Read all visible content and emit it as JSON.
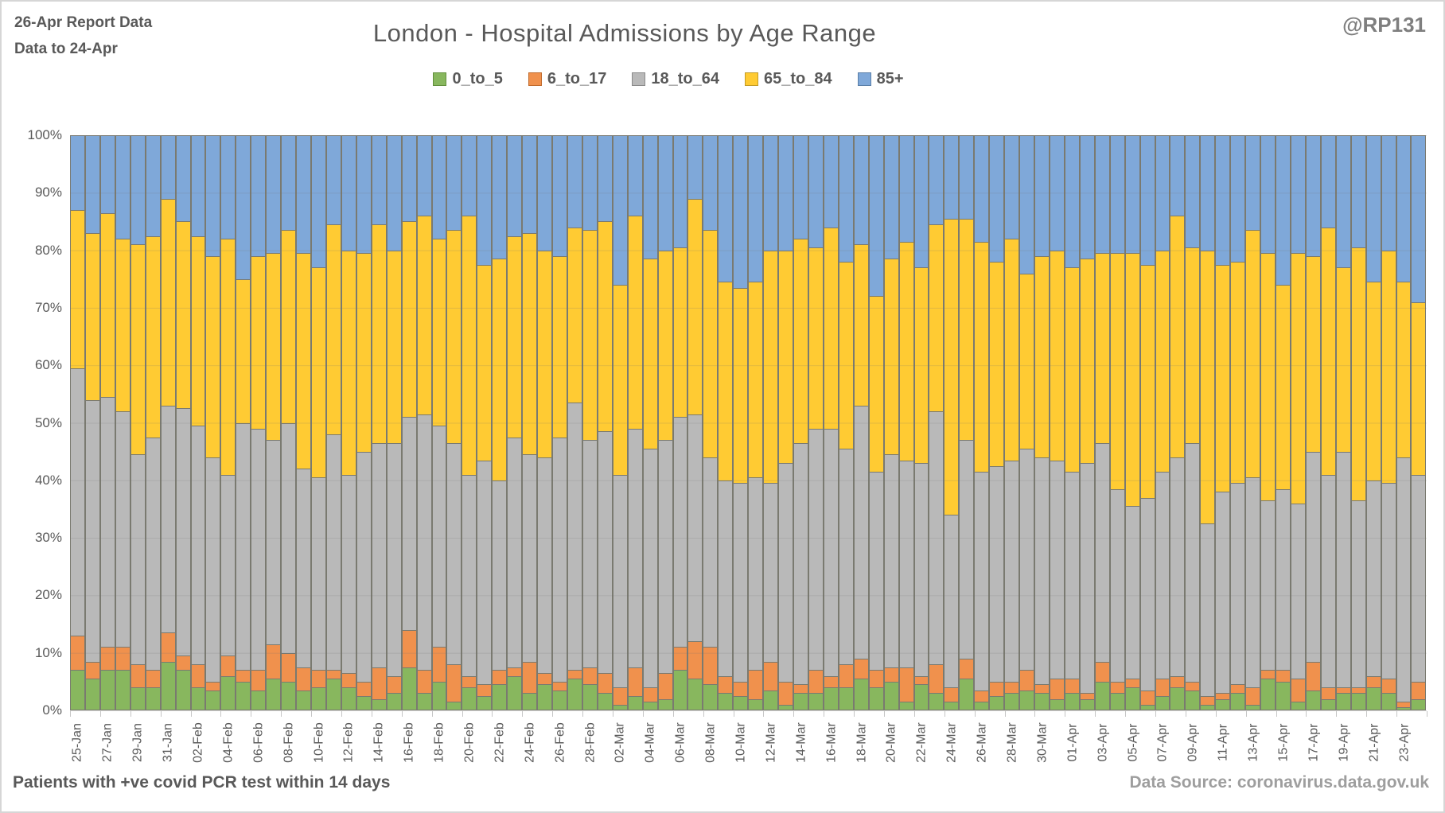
{
  "header": {
    "report_line1": "26-Apr Report Data",
    "report_line2": "Data to 24-Apr",
    "handle": "@RP131"
  },
  "footer": {
    "left": "Patients with  +ve covid PCR test within 14 days",
    "right": "Data Source: coronavirus.data.gov.uk"
  },
  "chart_data": {
    "type": "bar",
    "stacked": true,
    "percent_stacked": true,
    "title": "London - Hospital Admissions by Age Range",
    "ylim": [
      0,
      100
    ],
    "grid": true,
    "legend_position": "top",
    "y_ticks": [
      "0%",
      "10%",
      "20%",
      "30%",
      "40%",
      "50%",
      "60%",
      "70%",
      "80%",
      "90%",
      "100%"
    ],
    "x_tick_label_every": 2,
    "series": [
      {
        "name": "0_to_5",
        "color": "#88b75e",
        "swatch_border": "#628f3c"
      },
      {
        "name": "6_to_17",
        "color": "#f0914d",
        "swatch_border": "#c06a2c"
      },
      {
        "name": "18_to_64",
        "color": "#b9b9b9",
        "swatch_border": "#8a8a8a"
      },
      {
        "name": "65_to_84",
        "color": "#ffcb33",
        "swatch_border": "#c29b27"
      },
      {
        "name": "85+",
        "color": "#7fa8d9",
        "swatch_border": "#5a7fa8"
      }
    ],
    "categories": [
      "25-Jan",
      "26-Jan",
      "27-Jan",
      "28-Jan",
      "29-Jan",
      "30-Jan",
      "31-Jan",
      "01-Feb",
      "02-Feb",
      "03-Feb",
      "04-Feb",
      "05-Feb",
      "06-Feb",
      "07-Feb",
      "08-Feb",
      "09-Feb",
      "10-Feb",
      "11-Feb",
      "12-Feb",
      "13-Feb",
      "14-Feb",
      "15-Feb",
      "16-Feb",
      "17-Feb",
      "18-Feb",
      "19-Feb",
      "20-Feb",
      "21-Feb",
      "22-Feb",
      "23-Feb",
      "24-Feb",
      "25-Feb",
      "26-Feb",
      "27-Feb",
      "28-Feb",
      "01-Mar",
      "02-Mar",
      "03-Mar",
      "04-Mar",
      "05-Mar",
      "06-Mar",
      "07-Mar",
      "08-Mar",
      "09-Mar",
      "10-Mar",
      "11-Mar",
      "12-Mar",
      "13-Mar",
      "14-Mar",
      "15-Mar",
      "16-Mar",
      "17-Mar",
      "18-Mar",
      "19-Mar",
      "20-Mar",
      "21-Mar",
      "22-Mar",
      "23-Mar",
      "24-Mar",
      "25-Mar",
      "26-Mar",
      "27-Mar",
      "28-Mar",
      "29-Mar",
      "30-Mar",
      "31-Mar",
      "01-Apr",
      "02-Apr",
      "03-Apr",
      "04-Apr",
      "05-Apr",
      "06-Apr",
      "07-Apr",
      "08-Apr",
      "09-Apr",
      "10-Apr",
      "11-Apr",
      "12-Apr",
      "13-Apr",
      "14-Apr",
      "15-Apr",
      "16-Apr",
      "17-Apr",
      "18-Apr",
      "19-Apr",
      "20-Apr",
      "21-Apr",
      "22-Apr",
      "23-Apr",
      "24-Apr"
    ],
    "values": [
      [
        7,
        6,
        46.5,
        27.5,
        13
      ],
      [
        5.5,
        3,
        45.5,
        29,
        17
      ],
      [
        7,
        4,
        43.5,
        32,
        13.5
      ],
      [
        7,
        4,
        41,
        30,
        18
      ],
      [
        4,
        4,
        36.5,
        36.5,
        19
      ],
      [
        4,
        3,
        40.5,
        35,
        17.5
      ],
      [
        8.5,
        5,
        39.5,
        36,
        11
      ],
      [
        7,
        2.5,
        43,
        32.5,
        15
      ],
      [
        4,
        4,
        41.5,
        33,
        17.5
      ],
      [
        3.5,
        1.5,
        39,
        35,
        21
      ],
      [
        6,
        3.5,
        31.5,
        41,
        18
      ],
      [
        5,
        2,
        43,
        25,
        25
      ],
      [
        3.5,
        3.5,
        42,
        30,
        21
      ],
      [
        5.5,
        6,
        35.5,
        32.5,
        20.5
      ],
      [
        5,
        5,
        40,
        33.5,
        16.5
      ],
      [
        3.5,
        4,
        34.5,
        37.5,
        20.5
      ],
      [
        4,
        3,
        33.5,
        36.5,
        23
      ],
      [
        5.5,
        1.5,
        41,
        36.5,
        15.5
      ],
      [
        4,
        2.5,
        34.5,
        39,
        20
      ],
      [
        2.5,
        2.5,
        40,
        34.5,
        20.5
      ],
      [
        2,
        5.5,
        39,
        38,
        15.5
      ],
      [
        3,
        3,
        40.5,
        33.5,
        20
      ],
      [
        7.5,
        6.5,
        37,
        34,
        15
      ],
      [
        3,
        4,
        44.5,
        34.5,
        14
      ],
      [
        5,
        6,
        38.5,
        32.5,
        18
      ],
      [
        1.5,
        6.5,
        38.5,
        37,
        16.5
      ],
      [
        4,
        2,
        35,
        45,
        14
      ],
      [
        2.5,
        2,
        39,
        34,
        22.5
      ],
      [
        4.5,
        2.5,
        33,
        38.5,
        21.5
      ],
      [
        6,
        1.5,
        40,
        35,
        17.5
      ],
      [
        3,
        5.5,
        36,
        38.5,
        17
      ],
      [
        4.5,
        2,
        37.5,
        36,
        20
      ],
      [
        3.5,
        1.5,
        42.5,
        31.5,
        21
      ],
      [
        5.5,
        1.5,
        46.5,
        30.5,
        16
      ],
      [
        4.5,
        3,
        39.5,
        36.5,
        16.5
      ],
      [
        3,
        3.5,
        42,
        36.5,
        15
      ],
      [
        1,
        3,
        37,
        33,
        26
      ],
      [
        2.5,
        5,
        41.5,
        37,
        14
      ],
      [
        1.5,
        2.5,
        41.5,
        33,
        21.5
      ],
      [
        2,
        4.5,
        40.5,
        33,
        20
      ],
      [
        7,
        4,
        40,
        29.5,
        19.5
      ],
      [
        5.5,
        6.5,
        39.5,
        37.5,
        11
      ],
      [
        4.5,
        6.5,
        33,
        39.5,
        16.5
      ],
      [
        3,
        3,
        34,
        34.5,
        25.5
      ],
      [
        2.5,
        2.5,
        34.5,
        34,
        26.5
      ],
      [
        2,
        5,
        33.5,
        34,
        25.5
      ],
      [
        3.5,
        5,
        31,
        40.5,
        20
      ],
      [
        1,
        4,
        38,
        37,
        20
      ],
      [
        3,
        1.5,
        42,
        35.5,
        18
      ],
      [
        3,
        4,
        42,
        31.5,
        19.5
      ],
      [
        4,
        2,
        43,
        35,
        16
      ],
      [
        4,
        4,
        37.5,
        32.5,
        22
      ],
      [
        5.5,
        3.5,
        44,
        28,
        19
      ],
      [
        4,
        3,
        34.5,
        30.5,
        28
      ],
      [
        5,
        2.5,
        37,
        34,
        21.5
      ],
      [
        1.5,
        6,
        36,
        38,
        18.5
      ],
      [
        4.5,
        1.5,
        37,
        34,
        23
      ],
      [
        3,
        5,
        44,
        32.5,
        15.5
      ],
      [
        1.5,
        2.5,
        30,
        51.5,
        14.5
      ],
      [
        5.5,
        3.5,
        38,
        38.5,
        14.5
      ],
      [
        1.5,
        2,
        38,
        40,
        18.5
      ],
      [
        2.5,
        2.5,
        37.5,
        35.5,
        22
      ],
      [
        3,
        2,
        38.5,
        38.5,
        18
      ],
      [
        3.5,
        3.5,
        38.5,
        30.5,
        24
      ],
      [
        3,
        1.5,
        39.5,
        35,
        21
      ],
      [
        2,
        3.5,
        38,
        36.5,
        20
      ],
      [
        3,
        2.5,
        36,
        35.5,
        23
      ],
      [
        2,
        1,
        40,
        35.5,
        21.5
      ],
      [
        5,
        3.5,
        38,
        33,
        20.5
      ],
      [
        3,
        2,
        33.5,
        41,
        20.5
      ],
      [
        4,
        1.5,
        30,
        44,
        20.5
      ],
      [
        1,
        2.5,
        33.5,
        40.5,
        22.5
      ],
      [
        2.5,
        3,
        36,
        38.5,
        20
      ],
      [
        4,
        2,
        38,
        42,
        14
      ],
      [
        3.5,
        1.5,
        41.5,
        34,
        19.5
      ],
      [
        1,
        1.5,
        30,
        47.5,
        20
      ],
      [
        2,
        1,
        35,
        39.5,
        22.5
      ],
      [
        3,
        1.5,
        35,
        38.5,
        22
      ],
      [
        1,
        3,
        36.5,
        43,
        16.5
      ],
      [
        5.5,
        1.5,
        29.5,
        43,
        20.5
      ],
      [
        5,
        2,
        31.5,
        35.5,
        26
      ],
      [
        1.5,
        4,
        30.5,
        43.5,
        20.5
      ],
      [
        3.5,
        5,
        36.5,
        34,
        21
      ],
      [
        2,
        2,
        37,
        43,
        16
      ],
      [
        3,
        1,
        41,
        32,
        23
      ],
      [
        3,
        1,
        32.5,
        44,
        19.5
      ],
      [
        4,
        2,
        34,
        34.5,
        25.5
      ],
      [
        3,
        2.5,
        34,
        40.5,
        20
      ],
      [
        0.5,
        1,
        42.5,
        30.5,
        25.5
      ],
      [
        2,
        3,
        36,
        30,
        29
      ]
    ]
  }
}
